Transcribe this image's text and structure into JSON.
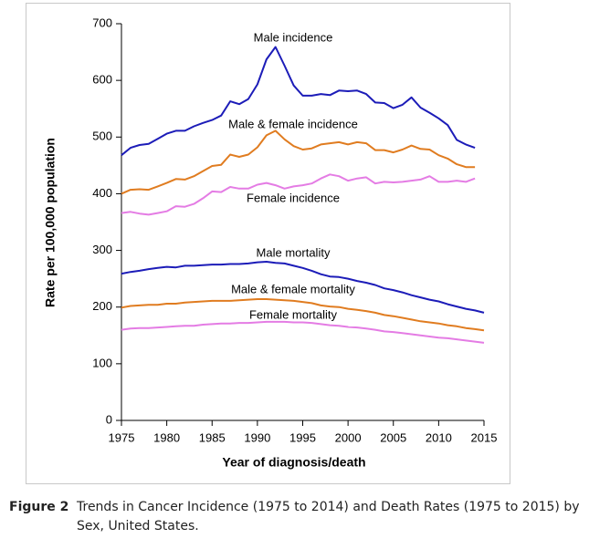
{
  "chart_data": {
    "type": "line",
    "x_label": "Year of diagnosis/death",
    "y_label": "Rate per 100,000 population",
    "x": [
      1975,
      1976,
      1977,
      1978,
      1979,
      1980,
      1981,
      1982,
      1983,
      1984,
      1985,
      1986,
      1987,
      1988,
      1989,
      1990,
      1991,
      1992,
      1993,
      1994,
      1995,
      1996,
      1997,
      1998,
      1999,
      2000,
      2001,
      2002,
      2003,
      2004,
      2005,
      2006,
      2007,
      2008,
      2009,
      2010,
      2011,
      2012,
      2013,
      2014,
      2015
    ],
    "xlim": [
      1975,
      2015
    ],
    "xticks": [
      1975,
      1980,
      1985,
      1990,
      1995,
      2000,
      2005,
      2010,
      2015
    ],
    "ylim": [
      0,
      700
    ],
    "yticks": [
      0,
      100,
      200,
      300,
      400,
      500,
      600,
      700
    ],
    "series": [
      {
        "name": "Male incidence",
        "color": "#1c1cb8",
        "values": [
          468,
          481,
          486,
          488,
          497,
          506,
          511,
          511,
          519,
          525,
          530,
          538,
          563,
          558,
          567,
          593,
          637,
          659,
          626,
          591,
          573,
          573,
          576,
          574,
          582,
          581,
          582,
          576,
          561,
          560,
          551,
          557,
          570,
          552,
          543,
          533,
          521,
          495,
          487,
          481,
          null
        ]
      },
      {
        "name": "Male & female incidence",
        "color": "#e07c20",
        "values": [
          400,
          407,
          408,
          407,
          413,
          419,
          426,
          425,
          431,
          440,
          449,
          451,
          469,
          465,
          469,
          482,
          503,
          511,
          496,
          484,
          478,
          480,
          487,
          489,
          491,
          487,
          491,
          489,
          477,
          477,
          473,
          478,
          485,
          479,
          478,
          468,
          462,
          452,
          447,
          447,
          null
        ]
      },
      {
        "name": "Female incidence",
        "color": "#e47ce4",
        "values": [
          366,
          368,
          365,
          363,
          366,
          369,
          378,
          377,
          382,
          392,
          404,
          403,
          412,
          409,
          409,
          416,
          419,
          415,
          409,
          413,
          415,
          418,
          427,
          434,
          431,
          423,
          427,
          429,
          418,
          421,
          420,
          421,
          423,
          425,
          431,
          421,
          421,
          423,
          421,
          427,
          null
        ]
      },
      {
        "name": "Male mortality",
        "color": "#1c1cb8",
        "values": [
          259,
          262,
          264,
          267,
          269,
          271,
          270,
          273,
          273,
          274,
          275,
          275,
          276,
          276,
          277,
          279,
          280,
          278,
          277,
          273,
          269,
          264,
          258,
          254,
          253,
          250,
          246,
          243,
          239,
          233,
          230,
          226,
          221,
          217,
          213,
          210,
          205,
          201,
          197,
          194,
          190
        ]
      },
      {
        "name": "Male & female mortality",
        "color": "#e07c20",
        "values": [
          199,
          202,
          203,
          204,
          204,
          206,
          206,
          208,
          209,
          210,
          211,
          211,
          211,
          212,
          213,
          214,
          214,
          213,
          212,
          211,
          209,
          207,
          203,
          201,
          200,
          197,
          195,
          193,
          190,
          186,
          184,
          181,
          178,
          175,
          173,
          171,
          168,
          166,
          163,
          161,
          159
        ]
      },
      {
        "name": "Female mortality",
        "color": "#e47ce4",
        "values": [
          160,
          162,
          163,
          163,
          164,
          165,
          166,
          167,
          167,
          169,
          170,
          171,
          171,
          172,
          172,
          173,
          174,
          174,
          174,
          173,
          173,
          172,
          170,
          168,
          167,
          165,
          164,
          162,
          160,
          157,
          156,
          154,
          152,
          150,
          148,
          146,
          145,
          143,
          141,
          139,
          137
        ]
      }
    ]
  },
  "figure": {
    "label": "Figure 2",
    "text": "Trends in Cancer Incidence (1975 to 2014) and Death Rates (1975 to 2015) by Sex, United States."
  }
}
